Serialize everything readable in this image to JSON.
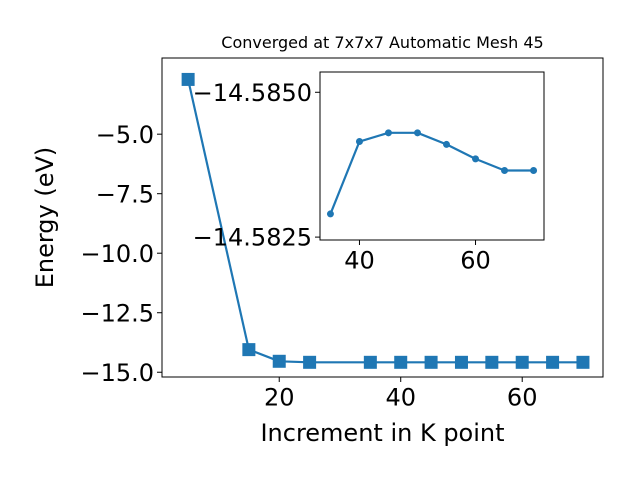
{
  "chart_data": [
    {
      "type": "line",
      "title": "Converged at 7x7x7 Automatic Mesh 45",
      "xlabel": "Increment in K point",
      "ylabel": "Energy (eV)",
      "xlim": [
        0.7,
        73.3
      ],
      "ylim": [
        -15.2,
        -1.8
      ],
      "xticks": [
        20,
        40,
        60
      ],
      "yticks": [
        -5.0,
        -7.5,
        -10.0,
        -12.5,
        -15.0
      ],
      "xtick_labels": [
        "20",
        "40",
        "60"
      ],
      "ytick_labels": [
        "−5.0",
        "−7.5",
        "−10.0",
        "−12.5",
        "−15.0"
      ],
      "grid": false,
      "legend": "none",
      "marker": "square",
      "color": "#1f77b4",
      "x": [
        5,
        15,
        20,
        25,
        35,
        40,
        45,
        50,
        55,
        60,
        65,
        70
      ],
      "y": [
        -2.7,
        -14.05,
        -14.54,
        -14.583,
        -14.5833,
        -14.5832,
        -14.58305,
        -14.58305,
        -14.5831,
        -14.58315,
        -14.5832,
        -14.5832
      ]
    },
    {
      "type": "line",
      "title": "",
      "xlabel": "",
      "ylabel": "",
      "xlim": [
        33.2,
        71.8
      ],
      "ylim": [
        -14.58245,
        -14.58535
      ],
      "xticks": [
        40,
        60
      ],
      "yticks": [
        -14.585,
        -14.5825
      ],
      "xtick_labels": [
        "40",
        "60"
      ],
      "ytick_labels": [
        "−14.5850",
        "−14.5825"
      ],
      "grid": false,
      "legend": "none",
      "marker": "circle",
      "color": "#1f77b4",
      "x": [
        35,
        40,
        45,
        50,
        55,
        60,
        65,
        70
      ],
      "y": [
        -14.5829,
        -14.58415,
        -14.5843,
        -14.5843,
        -14.5841,
        -14.58385,
        -14.58365,
        -14.58365
      ]
    }
  ]
}
